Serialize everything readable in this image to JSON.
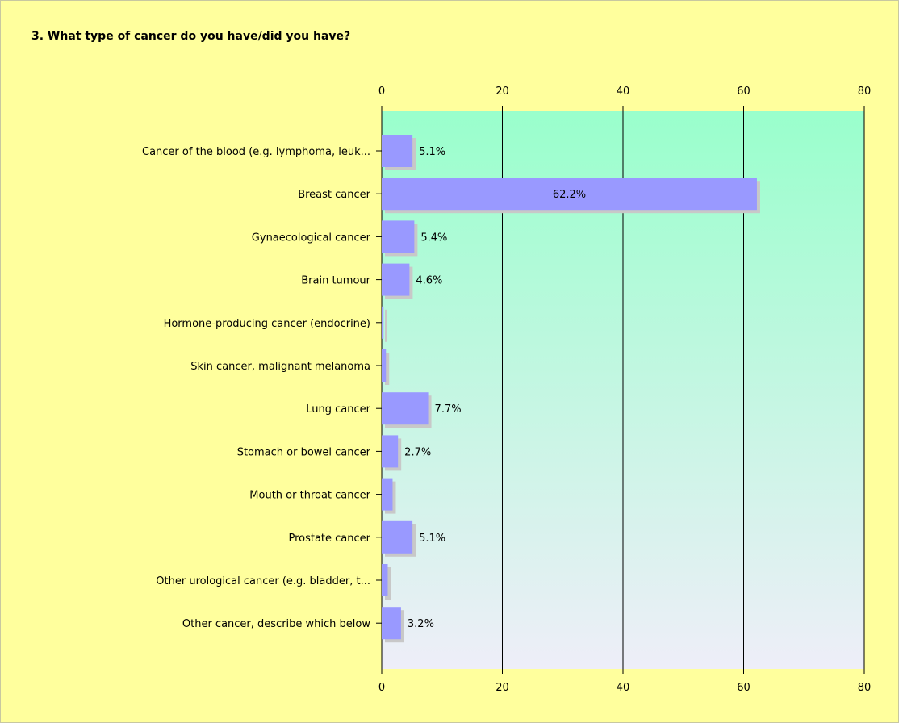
{
  "question": {
    "title": "3. What type of cancer do you have/did you have?"
  },
  "colors": {
    "bar": "#9999ff",
    "bar_shadow": "#c8c8c8",
    "plot_top": "#99ffcc",
    "plot_bottom": "#eeeef8",
    "background": "#ffff9d"
  },
  "chart_data": {
    "type": "bar",
    "orientation": "horizontal",
    "xlim": [
      0,
      80
    ],
    "ticks": [
      0,
      20,
      40,
      60,
      80
    ],
    "grid": true,
    "categories": [
      "Cancer of the blood (e.g. lymphoma, leuk...",
      "Breast cancer",
      "Gynaecological cancer",
      "Brain tumour",
      "Hormone-producing cancer (endocrine)",
      "Skin cancer, malignant melanoma",
      "Lung cancer",
      "Stomach or bowel cancer",
      "Mouth or throat cancer",
      "Prostate cancer",
      "Other urological cancer (e.g. bladder, t...",
      "Other cancer, describe which below"
    ],
    "values": [
      5.1,
      62.2,
      5.4,
      4.6,
      0.3,
      0.7,
      7.7,
      2.7,
      1.8,
      5.1,
      1.0,
      3.2
    ],
    "data_labels": [
      "5.1%",
      "62.2%",
      "5.4%",
      "4.6%",
      "",
      "",
      "7.7%",
      "2.7%",
      "",
      "5.1%",
      "",
      "3.2%"
    ]
  }
}
